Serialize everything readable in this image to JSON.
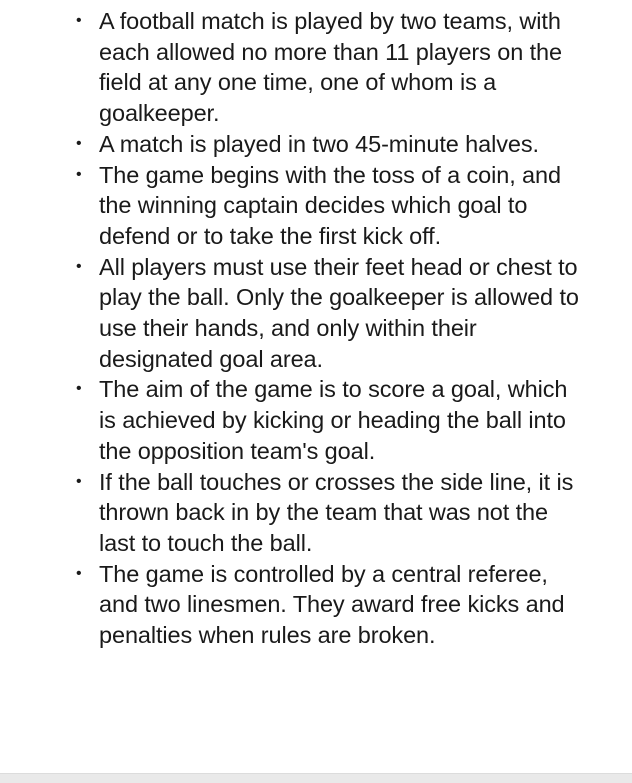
{
  "document": {
    "bullet_symbol": "•",
    "rules": [
      "A football match is played by two teams, with each allowed no more than 11 players on the field at any one time, one of whom is a goalkeeper.",
      "A match is played in two 45-minute halves.",
      "The game begins with the toss of a coin, and the winning captain decides which goal to defend or to take the first kick off.",
      "All players must use their feet head or chest to play the ball. Only the goalkeeper is allowed to use their hands, and only within their designated goal area.",
      "The aim of the game is to score a goal, which is achieved by kicking or heading the ball into the opposition team's goal.",
      "If the ball touches or crosses the side line, it is thrown back in by the team that was not the last to touch the ball.",
      "The game is controlled by a central referee, and two linesmen. They award free kicks and penalties when rules are broken."
    ]
  }
}
